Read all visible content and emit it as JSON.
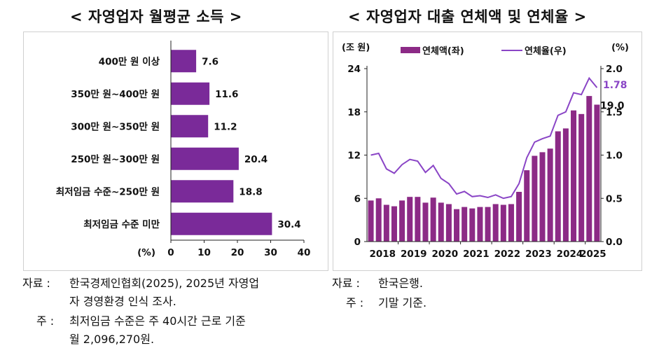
{
  "titles": {
    "left": "< 자영업자 월평균 소득 >",
    "right": "< 자영업자 대출 연체액 및 연체율 >"
  },
  "chart_data": [
    {
      "type": "bar",
      "orientation": "horizontal",
      "title": "< 자영업자 월평균 소득 >",
      "categories": [
        "400만 원 이상",
        "350만 원~400만 원",
        "300만 원~350만 원",
        "250만 원~300만 원",
        "최저임금 수준~250만 원",
        "최저임금 수준 미만"
      ],
      "values": [
        7.6,
        11.6,
        11.2,
        20.4,
        18.8,
        30.4
      ],
      "value_labels": [
        "7.6",
        "11.6",
        "11.2",
        "20.4",
        "18.8",
        "30.4"
      ],
      "xlabel": "(%)",
      "xlim": [
        0,
        40
      ],
      "xticks": [
        "0",
        "10",
        "20",
        "30",
        "40"
      ],
      "bar_color": "#7a2a99"
    },
    {
      "type": "bar+line",
      "title": "< 자영업자 대출 연체액 및 연체율 >",
      "left_unit": "(조 원)",
      "right_unit": "(%)",
      "legend": [
        "연체액(좌)",
        "연체율(우)"
      ],
      "ylim_left": [
        0,
        24
      ],
      "yticks_left": [
        "0",
        "6",
        "12",
        "18",
        "24"
      ],
      "ylim_right": [
        0,
        2.0
      ],
      "yticks_right": [
        "0.0",
        "0.5",
        "1.0",
        "1.5",
        "2.0"
      ],
      "year_labels": [
        "2018",
        "2019",
        "2020",
        "2021",
        "2022",
        "2023",
        "2024",
        "2025"
      ],
      "bar_series": {
        "name": "연체액(좌)",
        "color": "#8c2a86",
        "values": [
          5.7,
          6.0,
          5.1,
          4.9,
          5.7,
          6.2,
          6.2,
          5.4,
          6.1,
          5.4,
          5.2,
          4.5,
          4.8,
          4.6,
          4.8,
          4.8,
          5.2,
          5.1,
          5.2,
          6.9,
          9.9,
          11.9,
          12.4,
          12.9,
          15.3,
          15.7,
          18.2,
          17.7,
          20.2,
          19.0
        ]
      },
      "line_series": {
        "name": "연체율(우)",
        "color": "#8a45c6",
        "values": [
          1.0,
          1.02,
          0.84,
          0.79,
          0.89,
          0.95,
          0.93,
          0.8,
          0.88,
          0.73,
          0.67,
          0.55,
          0.58,
          0.52,
          0.53,
          0.51,
          0.54,
          0.5,
          0.52,
          0.67,
          0.97,
          1.15,
          1.19,
          1.22,
          1.46,
          1.5,
          1.72,
          1.7,
          1.89,
          1.78
        ]
      },
      "end_labels": {
        "line": "1.78",
        "bar": "19.0"
      }
    }
  ],
  "notes": {
    "left": [
      {
        "label": "자료 :",
        "text": "한국경제인협회(2025), 2025년 자영업"
      },
      {
        "label": "",
        "text": "자 경영환경 인식 조사."
      },
      {
        "label": "주 :",
        "text": "최저임금 수준은 주 40시간 근로 기준"
      },
      {
        "label": "",
        "text": "월 2,096,270원."
      }
    ],
    "right": [
      {
        "label": "자료 :",
        "text": "한국은행."
      },
      {
        "label": "주 :",
        "text": "기말 기준."
      }
    ]
  }
}
